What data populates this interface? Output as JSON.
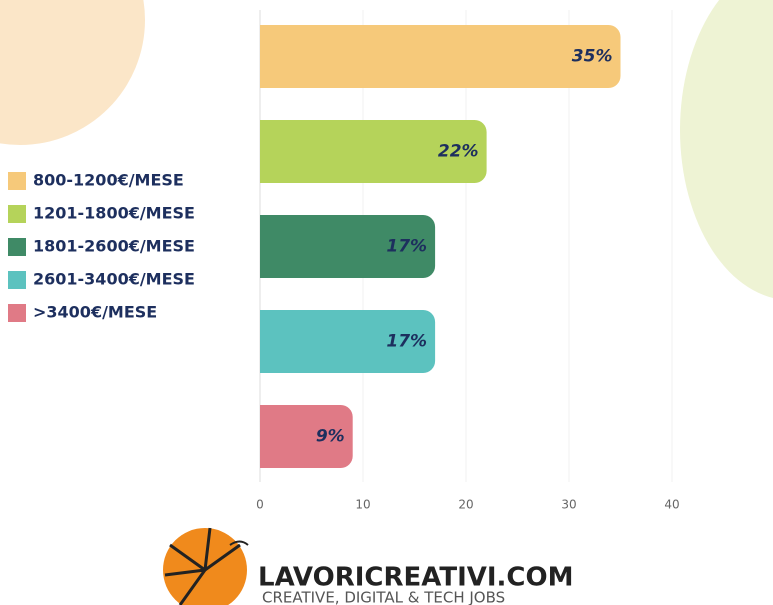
{
  "chart_data": {
    "type": "bar",
    "orientation": "horizontal",
    "categories": [
      "800-1200€/MESE",
      "1201-1800€/MESE",
      "1801-2600€/MESE",
      "2601-3400€/MESE",
      ">3400€/MESE"
    ],
    "values": [
      35,
      22,
      17,
      17,
      9
    ],
    "value_labels": [
      "35%",
      "22%",
      "17%",
      "17%",
      "9%"
    ],
    "colors": [
      "#f6c97a",
      "#b5d35a",
      "#3f8a66",
      "#5cc2bf",
      "#e07a86"
    ],
    "xlim": [
      0,
      50
    ],
    "xticks": [
      0,
      10,
      20,
      30,
      40
    ],
    "grid": true,
    "legend": "left"
  },
  "footer": {
    "brand": "LAVORICREATIVI.COM",
    "tagline": "CREATIVE, DIGITAL & TECH JOBS"
  }
}
